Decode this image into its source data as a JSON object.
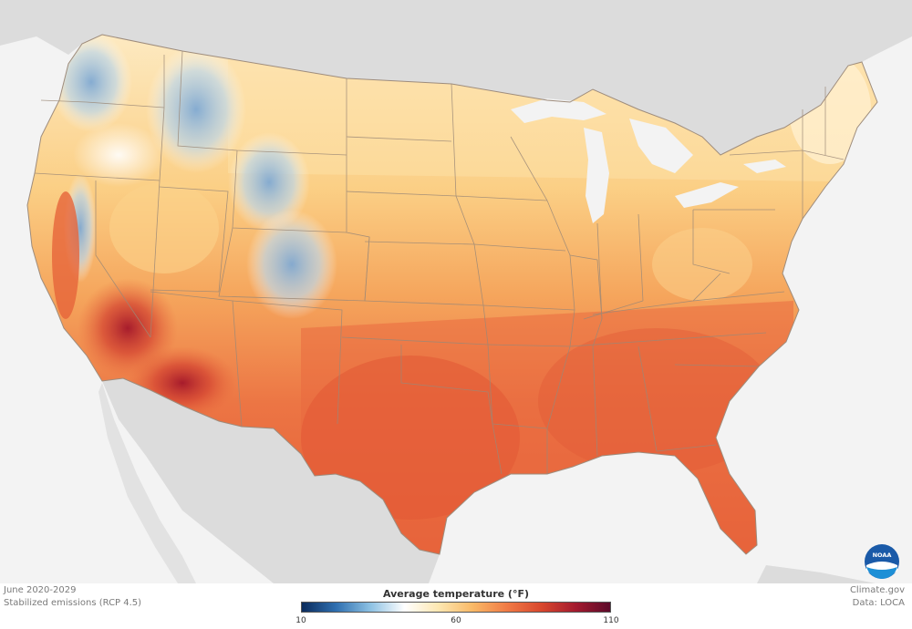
{
  "map": {
    "period": "June 2020-2029",
    "scenario": "Stabilized emissions (RCP 4.5)",
    "credit": "Climate.gov",
    "source": "Data: LOCA",
    "logo_text": "NOAA"
  },
  "legend": {
    "title": "Average temperature (°F)",
    "min_label": "10",
    "mid_label": "60",
    "max_label": "110",
    "min": 10,
    "max": 110,
    "gradient_colors": [
      "#0b2b5c",
      "#2f6fb0",
      "#8dc1e3",
      "#ffffff",
      "#fde7b0",
      "#f9b866",
      "#f07a45",
      "#d8472d",
      "#a31a2e",
      "#5c0a2a"
    ]
  },
  "colors": {
    "ocean": "#f2f2f2",
    "land_outside": "#dedede",
    "state_border": "#9b8877",
    "cool": "#8fb7d9",
    "mild": "#fbd690",
    "warm": "#f4a35a",
    "hot": "#e8683c",
    "hottest": "#b3202b"
  }
}
